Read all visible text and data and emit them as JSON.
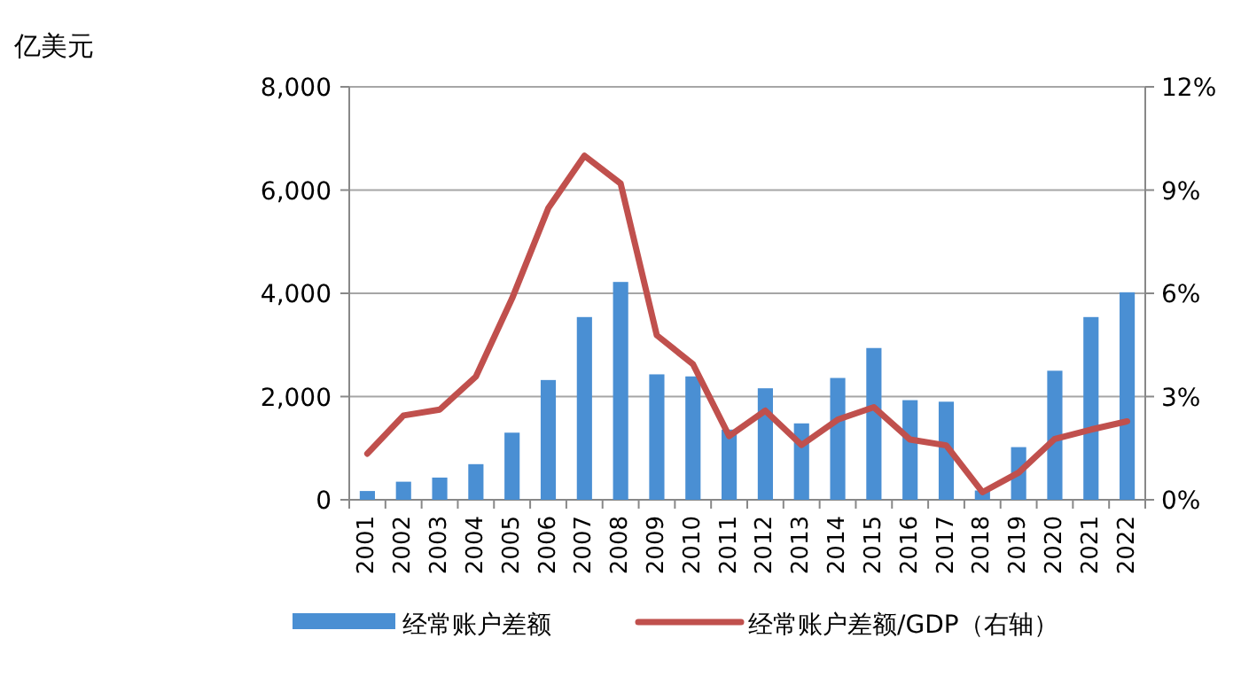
{
  "chart_data": {
    "type": "bar",
    "annotations": [
      "亿美元"
    ],
    "categories": [
      "2001",
      "2002",
      "2003",
      "2004",
      "2005",
      "2006",
      "2007",
      "2008",
      "2009",
      "2010",
      "2011",
      "2012",
      "2013",
      "2014",
      "2015",
      "2016",
      "2017",
      "2018",
      "2019",
      "2020",
      "2021",
      "2022"
    ],
    "series": [
      {
        "name": "经常账户差额",
        "color": "#4a8fd3",
        "values": [
          170,
          350,
          430,
          690,
          1300,
          2320,
          3540,
          4220,
          2430,
          2390,
          1360,
          2160,
          1480,
          2360,
          2940,
          1930,
          1900,
          180,
          1020,
          2500,
          3540,
          4020
        ]
      },
      {
        "name": "经常账户差额/GDP（右轴）",
        "type": "line",
        "axis": "y2",
        "color": "#c0504d",
        "values": [
          1.34,
          2.45,
          2.62,
          3.58,
          5.85,
          8.47,
          10.0,
          9.19,
          4.78,
          3.94,
          1.85,
          2.59,
          1.59,
          2.33,
          2.69,
          1.75,
          1.58,
          0.22,
          0.79,
          1.77,
          2.04,
          2.28
        ]
      }
    ],
    "ylim": [
      0,
      8000
    ],
    "yticks": [
      0,
      {
        "value": 2000,
        "label": "2,000"
      },
      {
        "value": 4000,
        "label": "4,000"
      },
      {
        "value": 6000,
        "label": "6,000"
      },
      {
        "value": 8000,
        "label": "8,000"
      }
    ],
    "y2lim": [
      0,
      12
    ],
    "y2ticks": [
      {
        "value": 0,
        "label": "0%"
      },
      {
        "value": 3,
        "label": "3%"
      },
      {
        "value": 6,
        "label": "6%"
      },
      {
        "value": 9,
        "label": "9%"
      },
      {
        "value": 12,
        "label": "12%"
      }
    ],
    "grid": "y",
    "legend": "bottom",
    "marker": "none",
    "line_style": "solid"
  }
}
